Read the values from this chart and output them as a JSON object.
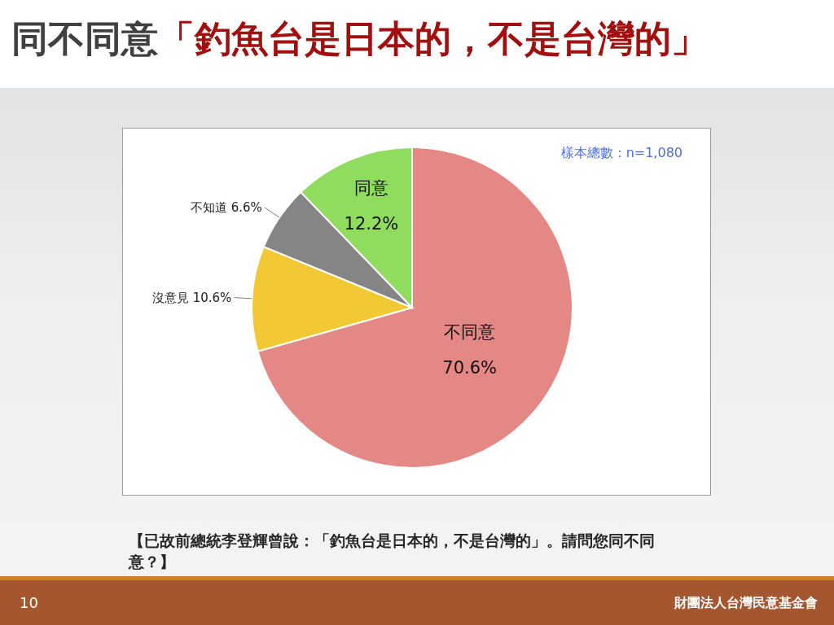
{
  "chart_data": {
    "type": "pie",
    "title": "同不同意「釣魚台是日本的，不是台灣的」",
    "categories": [
      "不同意",
      "沒意見",
      "不知道",
      "同意"
    ],
    "values": [
      70.6,
      10.6,
      6.6,
      12.2
    ],
    "colors": [
      "#e48886",
      "#f2c935",
      "#858585",
      "#8fdc5f"
    ],
    "value_labels": [
      "70.6%",
      "10.6%",
      "6.6%",
      "12.2%"
    ],
    "annotations": [
      "樣本總數：n=1,080",
      "【已故前總統李登輝曾說：「釣魚台是日本的，不是台灣的」。請問您同不同意？】",
      "10",
      "財團法人台灣民意基金會"
    ]
  }
}
